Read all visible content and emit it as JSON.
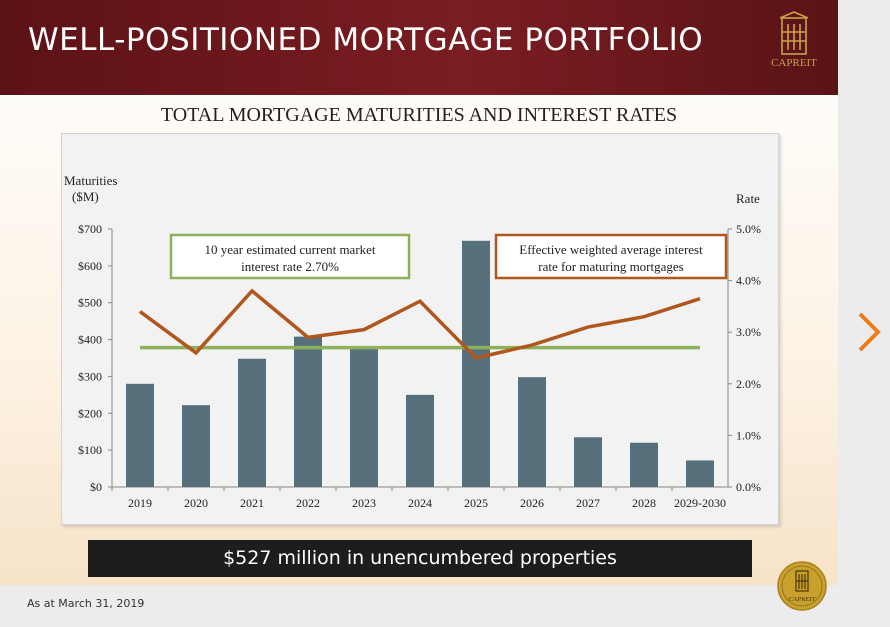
{
  "slide": {
    "title": "WELL-POSITIONED MORTGAGE PORTFOLIO",
    "logo_text": "CAPREIT",
    "subtitle": "TOTAL MORTGAGE MATURITIES AND INTEREST RATES",
    "banner": "$527 million in unencumbered properties",
    "footnote": "As at  March 31, 2019",
    "seal_text": "CAPREIT"
  },
  "colors": {
    "header": "#6b181c",
    "bars": "#56707b",
    "market_line": "#8db05a",
    "effective_line": "#b0571e",
    "nav_arrow": "#f07c1c"
  },
  "icons": {
    "nav": "chevron-right-icon",
    "logo": "building-icon"
  },
  "chart_data": {
    "type": "bar",
    "categories": [
      "2019",
      "2020",
      "2021",
      "2022",
      "2023",
      "2024",
      "2025",
      "2026",
      "2027",
      "2028",
      "2029-2030"
    ],
    "ylabel_left": [
      "Maturities",
      "($M)"
    ],
    "ylabel_right": "Rate",
    "ylim_left": [
      0,
      700
    ],
    "yticks_left": [
      "$0",
      "$100",
      "$200",
      "$300",
      "$400",
      "$500",
      "$600",
      "$700"
    ],
    "ylim_right": [
      0,
      5.0
    ],
    "yticks_right": [
      "0.0%",
      "1.0%",
      "2.0%",
      "3.0%",
      "4.0%",
      "5.0%"
    ],
    "series": [
      {
        "kind": "bar",
        "axis": "left",
        "values": [
          280,
          222,
          348,
          408,
          378,
          250,
          668,
          298,
          135,
          120,
          72
        ]
      },
      {
        "kind": "line",
        "axis": "right",
        "values": [
          3.4,
          2.6,
          3.8,
          2.9,
          3.05,
          3.6,
          2.5,
          2.75,
          3.1,
          3.3,
          3.65
        ]
      },
      {
        "kind": "line",
        "axis": "right",
        "values": [
          2.7,
          2.7,
          2.7,
          2.7,
          2.7,
          2.7,
          2.7,
          2.7,
          2.7,
          2.7,
          2.7
        ]
      }
    ],
    "annotations": [
      {
        "lines": [
          "10 year estimated current market",
          "interest rate 2.70%"
        ]
      },
      {
        "lines": [
          "Effective weighted average interest",
          "rate for maturing mortgages"
        ]
      }
    ],
    "grid": false
  }
}
